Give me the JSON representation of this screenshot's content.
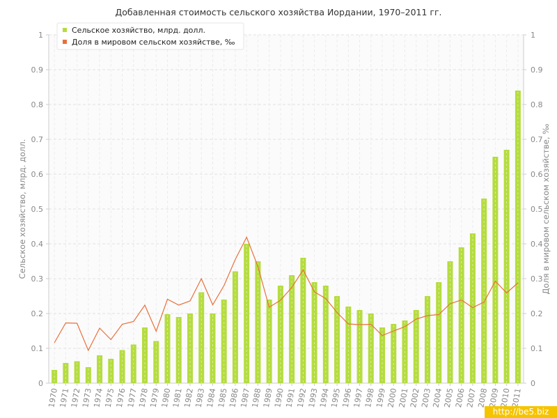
{
  "chart_data": {
    "type": "bar",
    "title": "Добавленная стоимость сельского хозяйства Иордании, 1970–2011 гг.",
    "ylabel": "Сельское хозяйство, млрд. долл.",
    "ylabel_right": "Доля в мировом сельском хозяйстве, ‰",
    "ylim": [
      0,
      1
    ],
    "ylim_right": [
      0,
      1
    ],
    "yticks": [
      "0",
      "0.1",
      "0.2",
      "0.3",
      "0.4",
      "0.5",
      "0.6",
      "0.7",
      "0.8",
      "0.9",
      "1"
    ],
    "grid": true,
    "legend_position": "top-left",
    "categories": [
      "1970",
      "1971",
      "1972",
      "1973",
      "1974",
      "1975",
      "1976",
      "1977",
      "1978",
      "1979",
      "1980",
      "1981",
      "1982",
      "1983",
      "1984",
      "1985",
      "1986",
      "1987",
      "1988",
      "1989",
      "1990",
      "1991",
      "1992",
      "1993",
      "1994",
      "1995",
      "1996",
      "1997",
      "1998",
      "1999",
      "2000",
      "2001",
      "2002",
      "2003",
      "2004",
      "2005",
      "2006",
      "2007",
      "2008",
      "2009",
      "2010",
      "2011"
    ],
    "series": [
      {
        "name": "Сельское хозяйство, млрд. долл.",
        "kind": "bar",
        "axis": "left",
        "color": "#b5dc3f",
        "values": [
          0.038,
          0.058,
          0.063,
          0.046,
          0.08,
          0.07,
          0.095,
          0.111,
          0.16,
          0.121,
          0.198,
          0.19,
          0.2,
          0.261,
          0.2,
          0.24,
          0.321,
          0.4,
          0.35,
          0.24,
          0.28,
          0.31,
          0.36,
          0.29,
          0.28,
          0.25,
          0.22,
          0.21,
          0.2,
          0.16,
          0.17,
          0.18,
          0.21,
          0.25,
          0.29,
          0.35,
          0.39,
          0.43,
          0.53,
          0.65,
          0.67,
          0.84
        ]
      },
      {
        "name": "Доля в мировом сельском хозяйстве, ‰",
        "kind": "line",
        "axis": "right",
        "color": "#e8703a",
        "values": [
          0.116,
          0.173,
          0.172,
          0.094,
          0.158,
          0.125,
          0.169,
          0.177,
          0.224,
          0.149,
          0.241,
          0.224,
          0.236,
          0.3,
          0.225,
          0.28,
          0.355,
          0.419,
          0.335,
          0.218,
          0.238,
          0.275,
          0.325,
          0.262,
          0.243,
          0.203,
          0.17,
          0.168,
          0.169,
          0.137,
          0.15,
          0.162,
          0.184,
          0.194,
          0.197,
          0.228,
          0.239,
          0.217,
          0.233,
          0.293,
          0.259,
          0.288
        ]
      }
    ]
  },
  "watermark": "http://be5.biz"
}
